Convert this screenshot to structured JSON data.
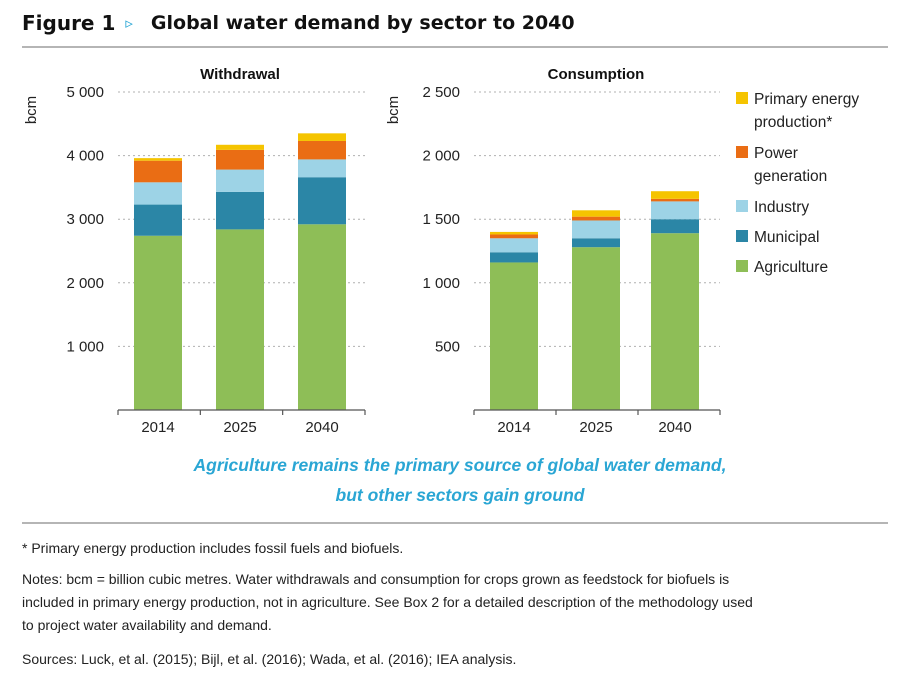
{
  "header": {
    "figure_label": "Figure 1",
    "arrow": "▹",
    "title": "Global water demand by sector to 2040"
  },
  "chart_data": [
    {
      "type": "bar",
      "stacked": true,
      "title": "Withdrawal",
      "ylabel": "bcm",
      "ylim": [
        0,
        5000
      ],
      "yticks": [
        1000,
        2000,
        3000,
        4000,
        5000
      ],
      "ytick_labels": [
        "1 000",
        "2 000",
        "3 000",
        "4 000",
        "5 000"
      ],
      "categories": [
        "2014",
        "2025",
        "2040"
      ],
      "series": [
        {
          "name": "Agriculture",
          "values": [
            2740,
            2840,
            2920
          ]
        },
        {
          "name": "Municipal",
          "values": [
            490,
            590,
            740
          ]
        },
        {
          "name": "Industry",
          "values": [
            350,
            350,
            280
          ]
        },
        {
          "name": "Power generation",
          "values": [
            340,
            310,
            290
          ]
        },
        {
          "name": "Primary energy production*",
          "values": [
            40,
            80,
            120
          ]
        }
      ]
    },
    {
      "type": "bar",
      "stacked": true,
      "title": "Consumption",
      "ylabel": "bcm",
      "ylim": [
        0,
        2500
      ],
      "yticks": [
        500,
        1000,
        1500,
        2000,
        2500
      ],
      "ytick_labels": [
        "500",
        "1 000",
        "1 500",
        "2 000",
        "2 500"
      ],
      "categories": [
        "2014",
        "2025",
        "2040"
      ],
      "series": [
        {
          "name": "Agriculture",
          "values": [
            1160,
            1280,
            1390
          ]
        },
        {
          "name": "Municipal",
          "values": [
            80,
            70,
            110
          ]
        },
        {
          "name": "Industry",
          "values": [
            110,
            140,
            140
          ]
        },
        {
          "name": "Power generation",
          "values": [
            30,
            30,
            20
          ]
        },
        {
          "name": "Primary energy production*",
          "values": [
            20,
            50,
            60
          ]
        }
      ]
    }
  ],
  "legend": [
    {
      "lines": [
        "Primary energy",
        "production*"
      ],
      "color": "#f5c400"
    },
    {
      "lines": [
        "Power",
        "generation"
      ],
      "color": "#ea6d14"
    },
    {
      "lines": [
        "Industry"
      ],
      "color": "#9dd3e6"
    },
    {
      "lines": [
        "Municipal"
      ],
      "color": "#2b86a6"
    },
    {
      "lines": [
        "Agriculture"
      ],
      "color": "#8ebe57"
    }
  ],
  "colors": {
    "Agriculture": "#8ebe57",
    "Municipal": "#2b86a6",
    "Industry": "#9dd3e6",
    "Power generation": "#ea6d14",
    "Primary energy production*": "#f5c400",
    "accent": "#2aa6d4"
  },
  "caption": {
    "line1": "Agriculture remains the primary source of global water demand,",
    "line2": "but other sectors gain ground"
  },
  "footnotes": {
    "asterisk": "* Primary energy production includes fossil fuels and biofuels.",
    "notes_line1": "Notes:  bcm = billion cubic metres. Water withdrawals and consumption for crops grown as feedstock for biofuels is",
    "notes_line2": "included in primary energy production, not in agriculture. See Box 2 for a detailed description of the methodology used",
    "notes_line3": "to project water availability and demand.",
    "sources": "Sources: Luck, et al. (2015); Bijl, et al. (2016); Wada, et al. (2016); IEA analysis."
  }
}
